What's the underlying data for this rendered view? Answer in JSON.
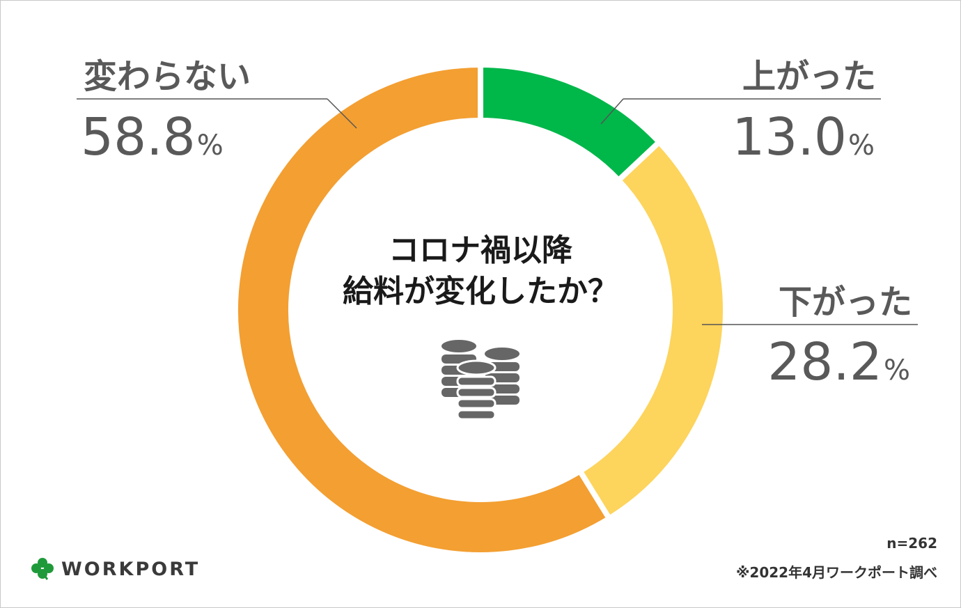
{
  "chart_data": {
    "type": "pie",
    "title_lines": [
      "コロナ禍以降",
      "給料が変化したか？"
    ],
    "slices": [
      {
        "label": "上がった",
        "value": 13.0,
        "display": "13.0",
        "unit": "%",
        "color": "#00b74a"
      },
      {
        "label": "下がった",
        "value": 28.2,
        "display": "28.2",
        "unit": "%",
        "color": "#fdd45c"
      },
      {
        "label": "変わらない",
        "value": 58.8,
        "display": "58.8",
        "unit": "%",
        "color": "#f39f32"
      }
    ]
  },
  "center_icon": "coin-stack-icon",
  "footer": {
    "sample": "n=262",
    "source": "※2022年4月ワークポート調べ"
  },
  "brand": {
    "name": "WORKPORT",
    "icon": "clover-icon",
    "icon_color": "#1f9a3a"
  }
}
